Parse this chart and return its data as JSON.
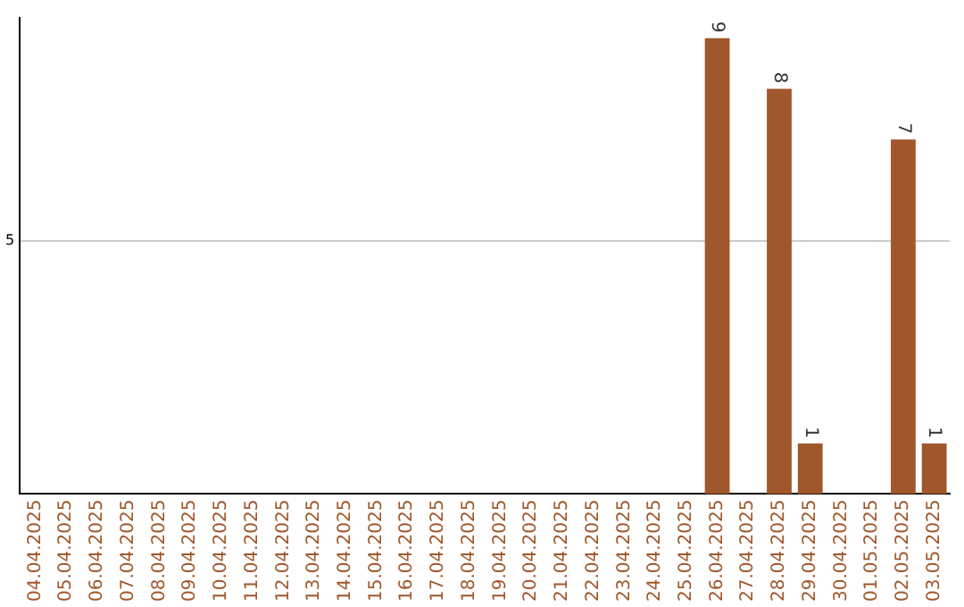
{
  "chart_data": {
    "type": "bar",
    "categories": [
      "04.04.2025",
      "05.04.2025",
      "06.04.2025",
      "07.04.2025",
      "08.04.2025",
      "09.04.2025",
      "10.04.2025",
      "11.04.2025",
      "12.04.2025",
      "13.04.2025",
      "14.04.2025",
      "15.04.2025",
      "16.04.2025",
      "17.04.2025",
      "18.04.2025",
      "19.04.2025",
      "20.04.2025",
      "21.04.2025",
      "22.04.2025",
      "23.04.2025",
      "24.04.2025",
      "25.04.2025",
      "26.04.2025",
      "27.04.2025",
      "28.04.2025",
      "29.04.2025",
      "30.04.2025",
      "01.05.2025",
      "02.05.2025",
      "03.05.2025"
    ],
    "values": [
      null,
      null,
      null,
      null,
      null,
      null,
      null,
      null,
      null,
      null,
      null,
      null,
      null,
      null,
      null,
      null,
      null,
      null,
      null,
      null,
      null,
      null,
      9,
      null,
      8,
      1,
      null,
      null,
      7,
      1
    ],
    "color": "#a0572b",
    "ylim": [
      0,
      9.4
    ],
    "yticks": [
      5
    ],
    "grid": "y",
    "data_labels": true,
    "legend": false
  }
}
